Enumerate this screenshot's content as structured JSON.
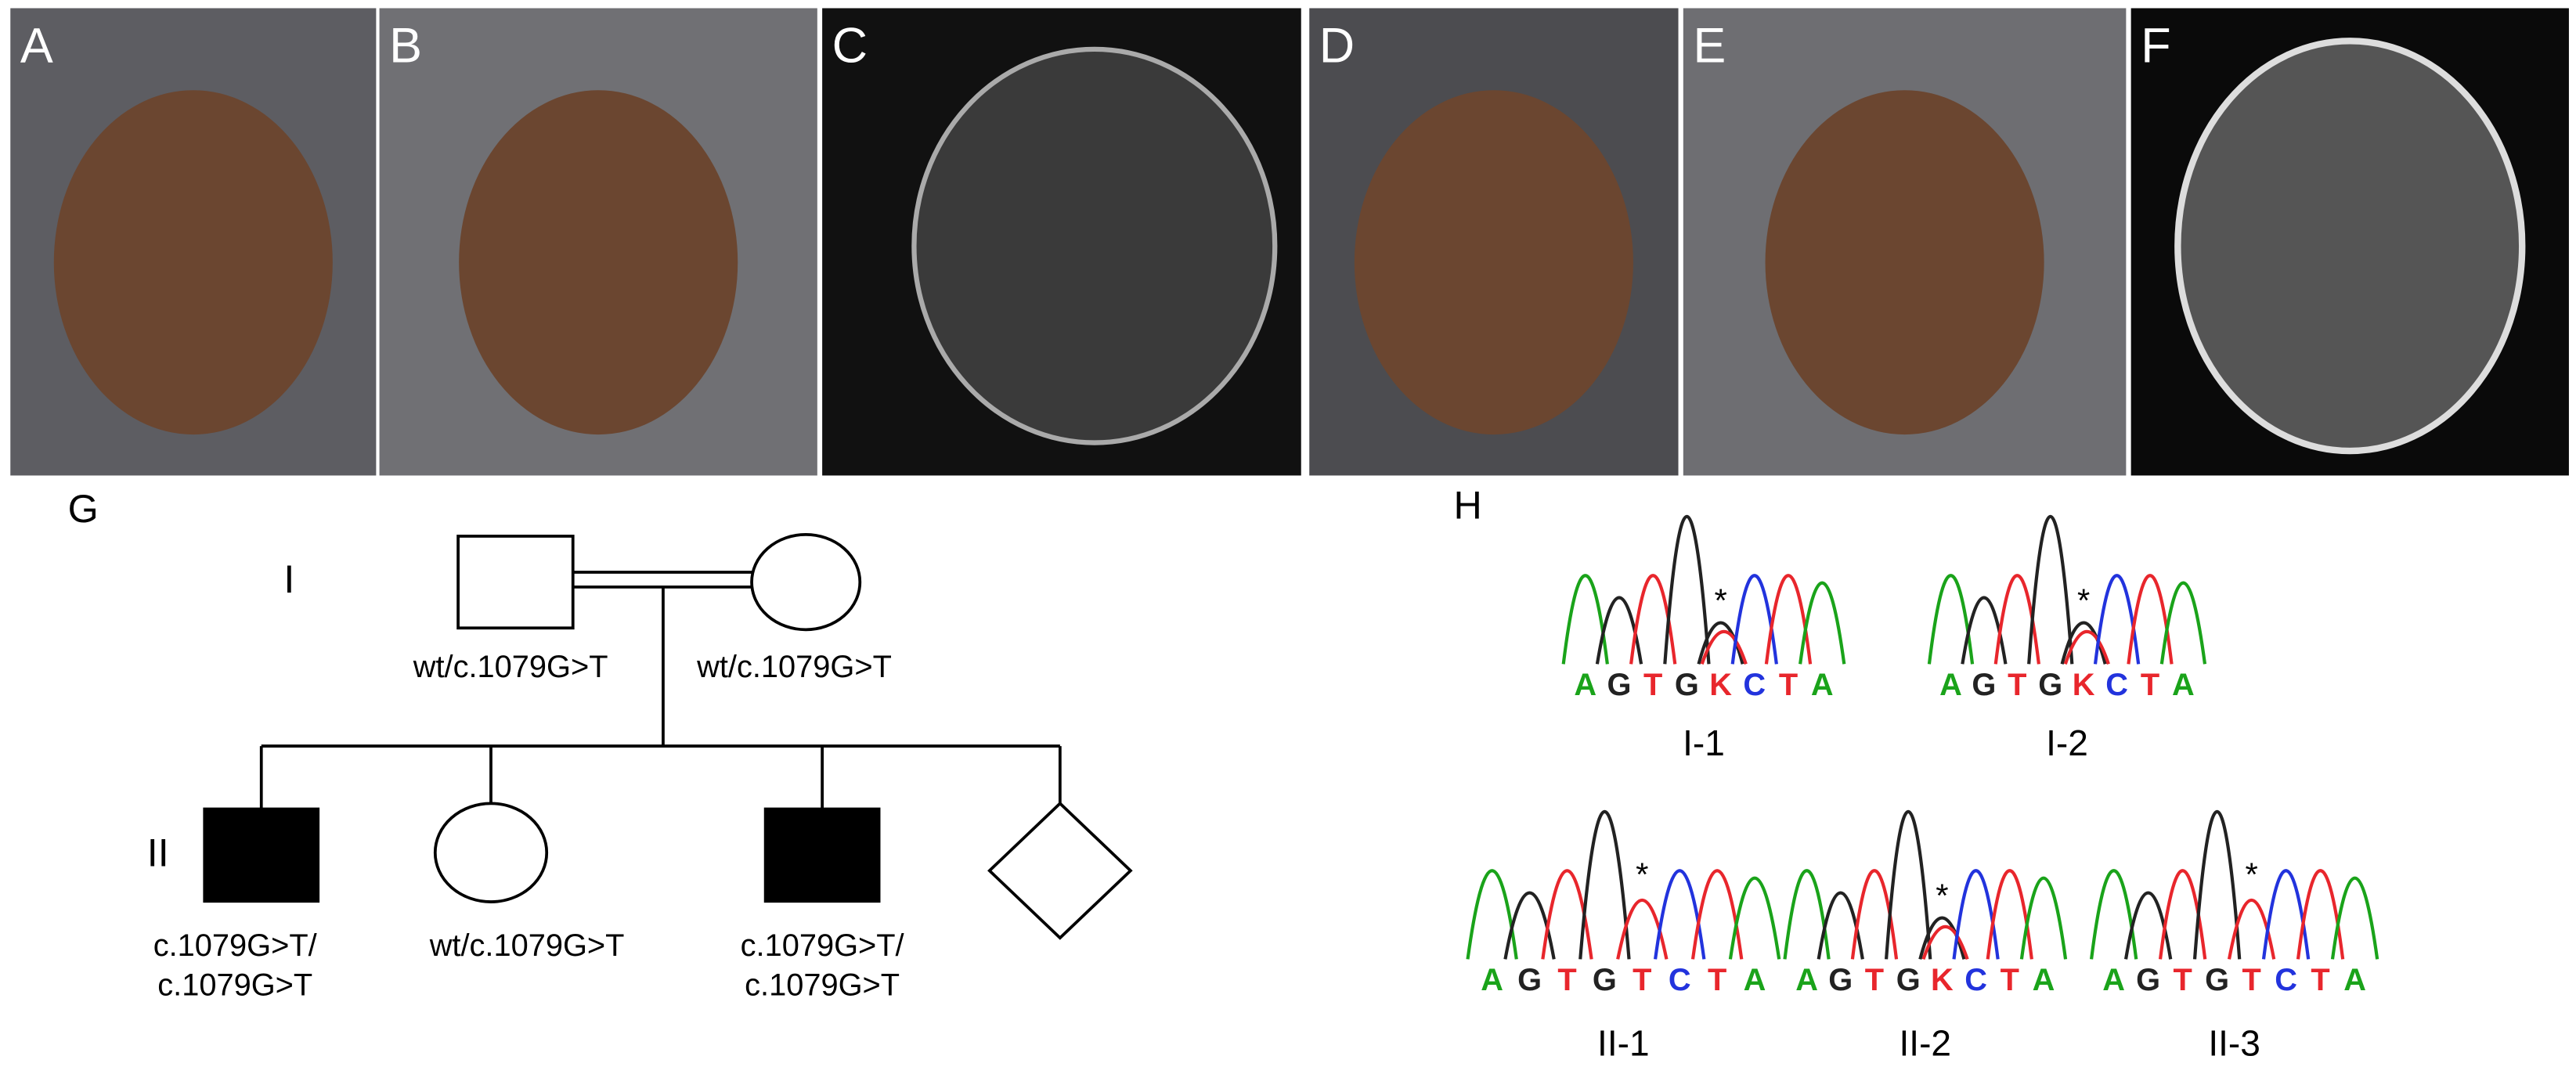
{
  "panels": [
    {
      "label": "A"
    },
    {
      "label": "B"
    },
    {
      "label": "C"
    },
    {
      "label": "D"
    },
    {
      "label": "E"
    },
    {
      "label": "F"
    }
  ],
  "pedigree": {
    "label": "G",
    "generation_labels": [
      "I",
      "II"
    ],
    "individuals": [
      {
        "genotype": [
          "wt/c.1079G>T"
        ]
      },
      {
        "genotype": [
          "wt/c.1079G>T"
        ]
      },
      {
        "genotype": [
          "c.1079G>T/",
          "c.1079G>T"
        ]
      },
      {
        "genotype": [
          "wt/c.1079G>T"
        ]
      },
      {
        "genotype": [
          "c.1079G>T/",
          "c.1079G>T"
        ]
      }
    ]
  },
  "sequencing": {
    "label": "H",
    "traces": [
      {
        "label": "I-1",
        "bases": [
          "A",
          "G",
          "T",
          "G",
          "K",
          "C",
          "T",
          "A"
        ],
        "marker": "*"
      },
      {
        "label": "I-2",
        "bases": [
          "A",
          "G",
          "T",
          "G",
          "K",
          "C",
          "T",
          "A"
        ],
        "marker": "*"
      },
      {
        "label": "II-1",
        "bases": [
          "A",
          "G",
          "T",
          "G",
          "T",
          "C",
          "T",
          "A"
        ],
        "marker": "*"
      },
      {
        "label": "II-2",
        "bases": [
          "A",
          "G",
          "T",
          "G",
          "K",
          "C",
          "T",
          "A"
        ],
        "marker": "*"
      },
      {
        "label": "II-3",
        "bases": [
          "A",
          "G",
          "T",
          "G",
          "T",
          "C",
          "T",
          "A"
        ],
        "marker": "*"
      }
    ]
  }
}
